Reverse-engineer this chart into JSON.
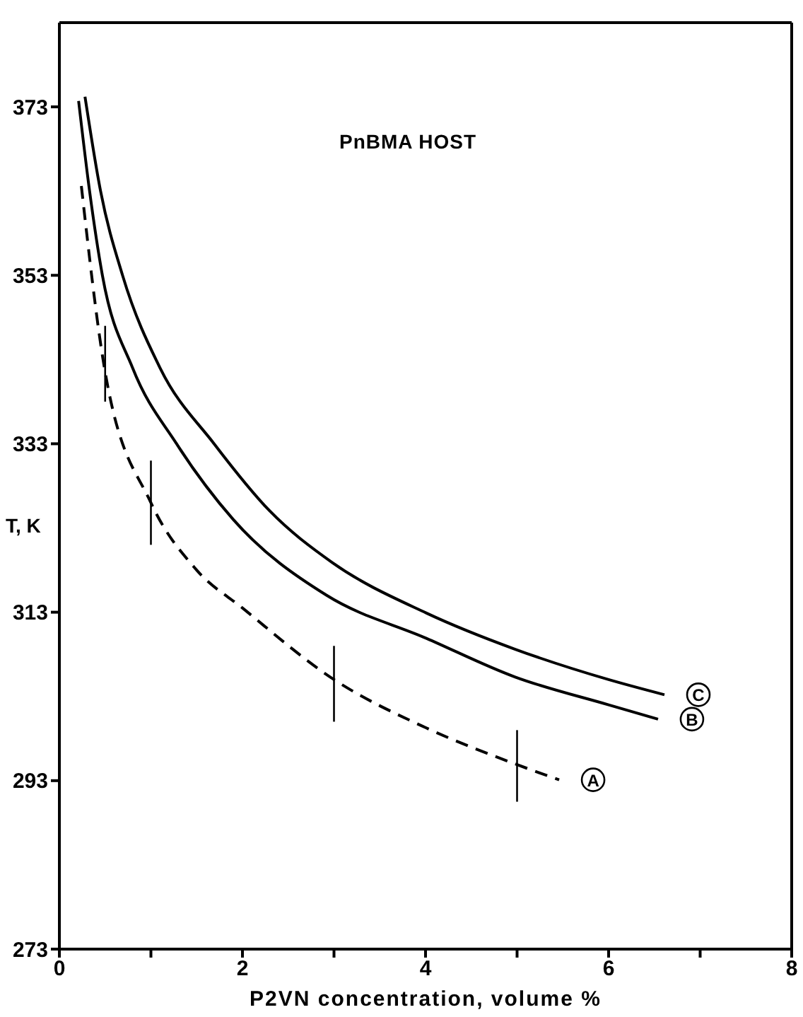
{
  "chart_data": {
    "type": "line",
    "title": "PnBMA HOST",
    "xlabel": "P2VN concentration, volume %",
    "ylabel": "T, K",
    "xlim": [
      0,
      8
    ],
    "xticks": [
      0,
      {
        "value": 1,
        "label": null
      },
      2,
      {
        "value": 3,
        "label": null
      },
      4,
      {
        "value": 5,
        "label": null
      },
      6,
      {
        "value": 7,
        "label": null
      },
      8
    ],
    "ylim": [
      273,
      383
    ],
    "yticks": [
      273,
      293,
      313,
      333,
      353,
      373
    ],
    "grid": false,
    "marker": "none",
    "series": [
      {
        "name": "A",
        "color": "#000000",
        "line_style": "dashed",
        "x": [
          0.24,
          0.5,
          1,
          1.5,
          2,
          3,
          4,
          5,
          5.46
        ],
        "values": [
          363.6,
          341.5,
          326,
          318,
          313.5,
          305,
          299.3,
          294.9,
          293.1
        ],
        "errors": [
          null,
          [
            338,
            347
          ],
          [
            321,
            331
          ],
          null,
          null,
          [
            300,
            309
          ],
          null,
          [
            290.5,
            299
          ],
          null
        ]
      },
      {
        "name": "B",
        "color": "#000000",
        "line_style": "solid",
        "x": [
          0.21,
          0.33,
          0.47,
          0.8,
          1.28,
          1.9,
          2.92,
          4.01,
          4.98,
          6,
          6.54
        ],
        "values": [
          373.7,
          363,
          353,
          342,
          333,
          324,
          315,
          309.9,
          305.3,
          302,
          300.3
        ]
      },
      {
        "name": "C",
        "color": "#000000",
        "line_style": "solid",
        "x": [
          0.28,
          0.45,
          0.69,
          1.1,
          1.69,
          2.3,
          2.98,
          4.01,
          4.98,
          6,
          6.61
        ],
        "values": [
          374.2,
          363,
          353,
          342,
          333,
          325,
          318.9,
          312.9,
          308.6,
          305,
          303.2
        ]
      }
    ]
  }
}
